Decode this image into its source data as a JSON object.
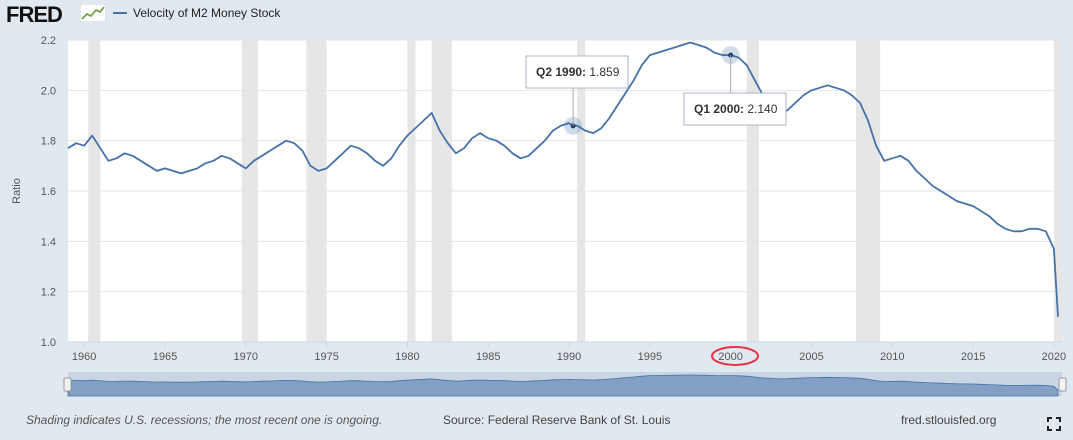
{
  "header": {
    "logo": "FRED",
    "legend_label": "Velocity of M2 Money Stock"
  },
  "footer": {
    "note": "Shading indicates U.S. recessions; the most recent one is ongoing.",
    "source": "Source: Federal Reserve Bank of St. Louis",
    "site": "fred.stlouisfed.org"
  },
  "colors": {
    "line": "#4572a7",
    "recession": "#e6e6e6",
    "highlight_circle": "#e8344a",
    "background": "#e1e9f0",
    "plot": "#ffffff"
  },
  "icons": {
    "logo_mark": "graph-icon",
    "fullscreen": "fullscreen-icon"
  },
  "chart_data": {
    "type": "line",
    "ylabel": "Ratio",
    "ylim": [
      1.0,
      2.2
    ],
    "yticks": [
      1.0,
      1.2,
      1.4,
      1.6,
      1.8,
      2.0,
      2.2
    ],
    "xlim": [
      1959.0,
      2020.5
    ],
    "xticks": [
      1960,
      1965,
      1970,
      1975,
      1980,
      1985,
      1990,
      1995,
      2000,
      2005,
      2010,
      2015,
      2020
    ],
    "highlighted_tick": 2000,
    "recessions": [
      [
        1960.25,
        1961.0
      ],
      [
        1969.75,
        1970.75
      ],
      [
        1973.75,
        1975.0
      ],
      [
        1980.0,
        1980.5
      ],
      [
        1981.5,
        1982.75
      ],
      [
        1990.5,
        1991.0
      ],
      [
        2001.0,
        2001.75
      ],
      [
        2007.75,
        2009.25
      ],
      [
        2020.0,
        2020.5
      ]
    ],
    "series": [
      {
        "name": "Velocity of M2 Money Stock",
        "points": [
          [
            1959.0,
            1.77
          ],
          [
            1959.5,
            1.79
          ],
          [
            1960.0,
            1.78
          ],
          [
            1960.5,
            1.82
          ],
          [
            1961.0,
            1.77
          ],
          [
            1961.5,
            1.72
          ],
          [
            1962.0,
            1.73
          ],
          [
            1962.5,
            1.75
          ],
          [
            1963.0,
            1.74
          ],
          [
            1963.5,
            1.72
          ],
          [
            1964.0,
            1.7
          ],
          [
            1964.5,
            1.68
          ],
          [
            1965.0,
            1.69
          ],
          [
            1965.5,
            1.68
          ],
          [
            1966.0,
            1.67
          ],
          [
            1966.5,
            1.68
          ],
          [
            1967.0,
            1.69
          ],
          [
            1967.5,
            1.71
          ],
          [
            1968.0,
            1.72
          ],
          [
            1968.5,
            1.74
          ],
          [
            1969.0,
            1.73
          ],
          [
            1969.5,
            1.71
          ],
          [
            1970.0,
            1.69
          ],
          [
            1970.5,
            1.72
          ],
          [
            1971.0,
            1.74
          ],
          [
            1971.5,
            1.76
          ],
          [
            1972.0,
            1.78
          ],
          [
            1972.5,
            1.8
          ],
          [
            1973.0,
            1.79
          ],
          [
            1973.5,
            1.76
          ],
          [
            1974.0,
            1.7
          ],
          [
            1974.5,
            1.68
          ],
          [
            1975.0,
            1.69
          ],
          [
            1975.5,
            1.72
          ],
          [
            1976.0,
            1.75
          ],
          [
            1976.5,
            1.78
          ],
          [
            1977.0,
            1.77
          ],
          [
            1977.5,
            1.75
          ],
          [
            1978.0,
            1.72
          ],
          [
            1978.5,
            1.7
          ],
          [
            1979.0,
            1.73
          ],
          [
            1979.5,
            1.78
          ],
          [
            1980.0,
            1.82
          ],
          [
            1980.5,
            1.85
          ],
          [
            1981.0,
            1.88
          ],
          [
            1981.5,
            1.91
          ],
          [
            1982.0,
            1.84
          ],
          [
            1982.5,
            1.79
          ],
          [
            1983.0,
            1.75
          ],
          [
            1983.5,
            1.77
          ],
          [
            1984.0,
            1.81
          ],
          [
            1984.5,
            1.83
          ],
          [
            1985.0,
            1.81
          ],
          [
            1985.5,
            1.8
          ],
          [
            1986.0,
            1.78
          ],
          [
            1986.5,
            1.75
          ],
          [
            1987.0,
            1.73
          ],
          [
            1987.5,
            1.74
          ],
          [
            1988.0,
            1.77
          ],
          [
            1988.5,
            1.8
          ],
          [
            1989.0,
            1.84
          ],
          [
            1989.5,
            1.86
          ],
          [
            1990.0,
            1.87
          ],
          [
            1990.25,
            1.859
          ],
          [
            1990.5,
            1.86
          ],
          [
            1991.0,
            1.84
          ],
          [
            1991.5,
            1.83
          ],
          [
            1992.0,
            1.85
          ],
          [
            1992.5,
            1.89
          ],
          [
            1993.0,
            1.94
          ],
          [
            1993.5,
            1.99
          ],
          [
            1994.0,
            2.04
          ],
          [
            1994.5,
            2.1
          ],
          [
            1995.0,
            2.14
          ],
          [
            1995.5,
            2.15
          ],
          [
            1996.0,
            2.16
          ],
          [
            1996.5,
            2.17
          ],
          [
            1997.0,
            2.18
          ],
          [
            1997.5,
            2.19
          ],
          [
            1998.0,
            2.18
          ],
          [
            1998.5,
            2.17
          ],
          [
            1999.0,
            2.15
          ],
          [
            1999.5,
            2.14
          ],
          [
            2000.0,
            2.14
          ],
          [
            2000.5,
            2.13
          ],
          [
            2001.0,
            2.1
          ],
          [
            2001.5,
            2.04
          ],
          [
            2002.0,
            1.98
          ],
          [
            2002.5,
            1.94
          ],
          [
            2003.0,
            1.91
          ],
          [
            2003.5,
            1.92
          ],
          [
            2004.0,
            1.95
          ],
          [
            2004.5,
            1.98
          ],
          [
            2005.0,
            2.0
          ],
          [
            2005.5,
            2.01
          ],
          [
            2006.0,
            2.02
          ],
          [
            2006.5,
            2.01
          ],
          [
            2007.0,
            2.0
          ],
          [
            2007.5,
            1.98
          ],
          [
            2008.0,
            1.95
          ],
          [
            2008.5,
            1.88
          ],
          [
            2009.0,
            1.78
          ],
          [
            2009.5,
            1.72
          ],
          [
            2010.0,
            1.73
          ],
          [
            2010.5,
            1.74
          ],
          [
            2011.0,
            1.72
          ],
          [
            2011.5,
            1.68
          ],
          [
            2012.0,
            1.65
          ],
          [
            2012.5,
            1.62
          ],
          [
            2013.0,
            1.6
          ],
          [
            2013.5,
            1.58
          ],
          [
            2014.0,
            1.56
          ],
          [
            2014.5,
            1.55
          ],
          [
            2015.0,
            1.54
          ],
          [
            2015.5,
            1.52
          ],
          [
            2016.0,
            1.5
          ],
          [
            2016.5,
            1.47
          ],
          [
            2017.0,
            1.45
          ],
          [
            2017.5,
            1.44
          ],
          [
            2018.0,
            1.44
          ],
          [
            2018.5,
            1.45
          ],
          [
            2019.0,
            1.45
          ],
          [
            2019.5,
            1.44
          ],
          [
            2020.0,
            1.37
          ],
          [
            2020.25,
            1.1
          ]
        ]
      }
    ],
    "tooltips": [
      {
        "period": "Q2 1990:",
        "value": "1.859",
        "x": 1990.25,
        "y": 1.859
      },
      {
        "period": "Q1 2000:",
        "value": "2.140",
        "x": 2000.0,
        "y": 2.14
      }
    ]
  }
}
